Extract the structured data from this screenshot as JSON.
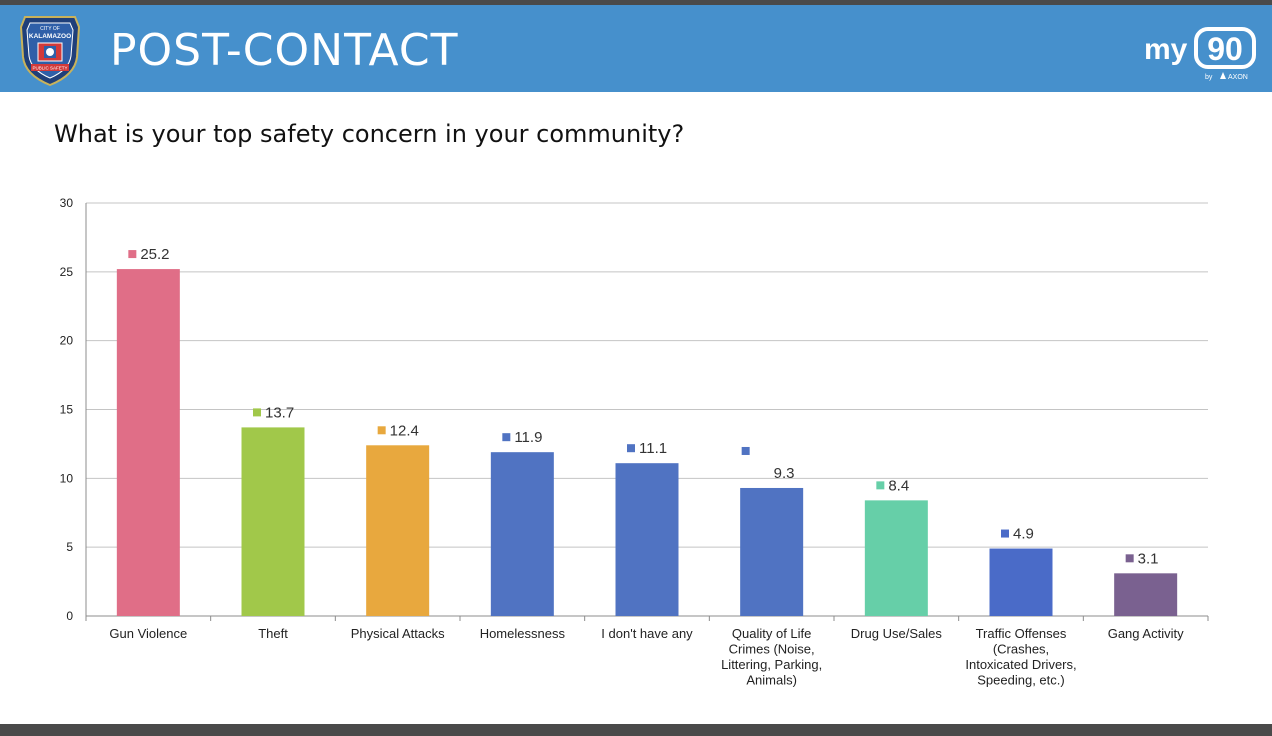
{
  "header": {
    "title": "POST-CONTACT",
    "badge": {
      "top_text": "CITY OF",
      "city": "KALAMAZOO",
      "ribbon": "PUBLIC SAFETY",
      "icon": "police-badge-icon"
    },
    "logo": {
      "my": "my",
      "num": "90",
      "by": "by",
      "brand": "AXON",
      "icon": "axon-icon"
    },
    "colors": {
      "header_bg": "#4690cc",
      "text": "#ffffff"
    }
  },
  "chart_data": {
    "type": "bar",
    "title": "What is your top safety concern in your community?",
    "categories": [
      "Gun Violence",
      "Theft",
      "Physical Attacks",
      "Homelessness",
      "I don't have any",
      "Quality of Life Crimes (Noise, Littering, Parking, Animals)",
      "Drug Use/Sales",
      "Traffic Offenses (Crashes, Intoxicated Drivers, Speeding, etc.)",
      "Gang Activity"
    ],
    "category_label_lines": [
      [
        "Gun Violence"
      ],
      [
        "Theft"
      ],
      [
        "Physical Attacks"
      ],
      [
        "Homelessness"
      ],
      [
        "I don't have any"
      ],
      [
        "Quality of Life",
        "Crimes (Noise,",
        "Littering, Parking,",
        "Animals)"
      ],
      [
        "Drug Use/Sales"
      ],
      [
        "Traffic Offenses",
        "(Crashes,",
        "Intoxicated Drivers,",
        "Speeding, etc.)"
      ],
      [
        "Gang Activity"
      ]
    ],
    "values": [
      25.2,
      13.7,
      12.4,
      11.9,
      11.1,
      9.3,
      8.4,
      4.9,
      3.1
    ],
    "value_labels": [
      "25.2",
      "13.7",
      "12.4",
      "11.9",
      "11.1",
      "9.3",
      "8.4",
      "4.9",
      "3.1"
    ],
    "colors": [
      "#e06e87",
      "#a1c84a",
      "#e8a83e",
      "#5073c2",
      "#5073c2",
      "#5073c2",
      "#66cfa8",
      "#4a6bc8",
      "#7a6190"
    ],
    "xlabel": "",
    "ylabel": "",
    "ylim": [
      0,
      30
    ],
    "yticks": [
      0,
      5,
      10,
      15,
      20,
      25,
      30
    ],
    "ytick_labels": [
      "0",
      "5",
      "10",
      "15",
      "20",
      "25",
      "30"
    ],
    "grid": true,
    "legend": "none"
  }
}
